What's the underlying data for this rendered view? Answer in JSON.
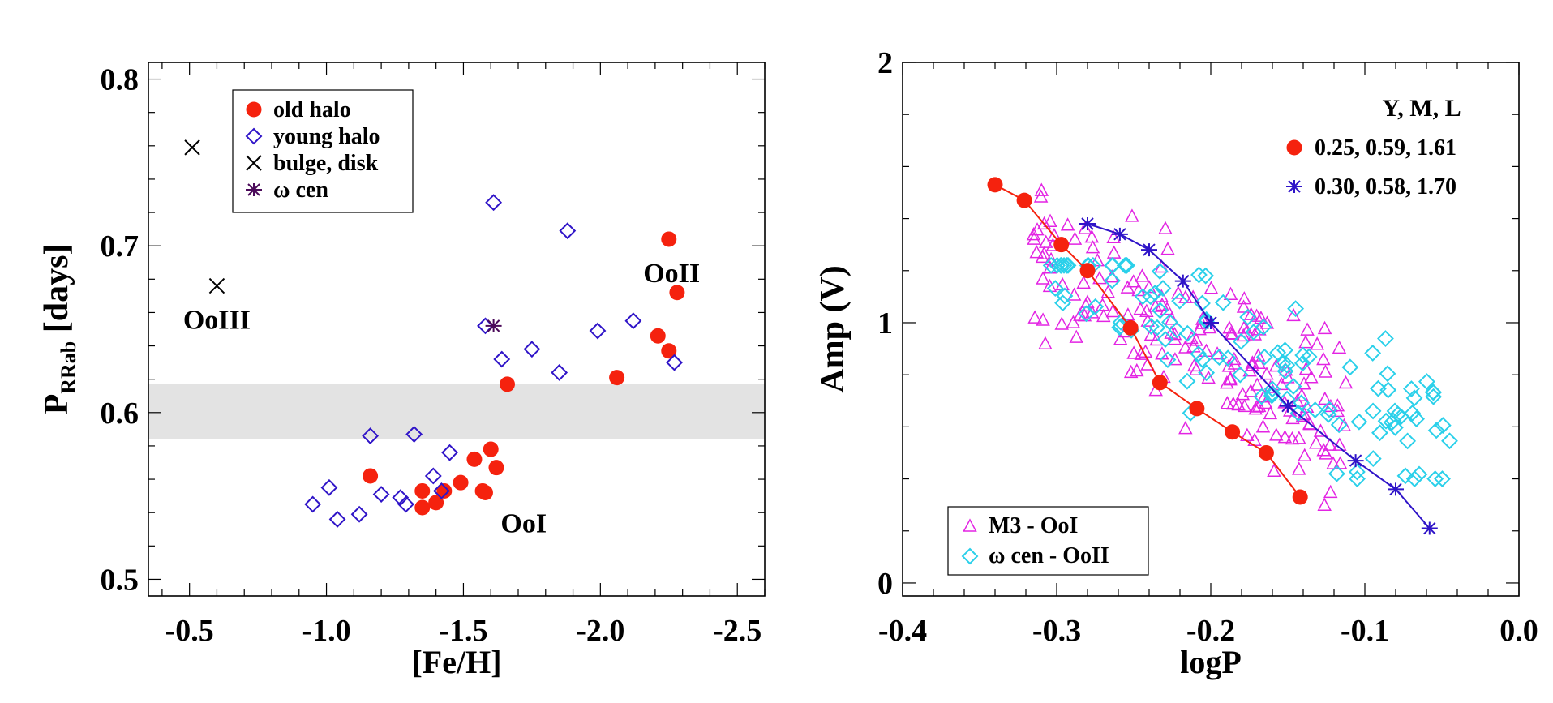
{
  "colors": {
    "red": "#f5220e",
    "blue": "#2f14c8",
    "purple": "#4b0a5a",
    "magenta": "#e324e3",
    "cyan": "#2ad0ea",
    "band": "#e3e3e3"
  },
  "chart_data": [
    {
      "type": "scatter",
      "title": "",
      "xlabel": "[Fe/H]",
      "ylabel": "P",
      "ylabel_sub": "RRab",
      "ylabel_units": " [days]",
      "xlim": [
        -0.35,
        -2.6
      ],
      "ylim": [
        0.49,
        0.81
      ],
      "xticks": [
        -0.5,
        -1.0,
        -1.5,
        -2.0,
        -2.5
      ],
      "xtick_labels": [
        "-0.5",
        "-1.0",
        "-1.5",
        "-2.0",
        "-2.5"
      ],
      "yticks": [
        0.5,
        0.6,
        0.7,
        0.8
      ],
      "ytick_labels": [
        "0.5",
        "0.6",
        "0.7",
        "0.8"
      ],
      "band": [
        0.584,
        0.617
      ],
      "legend_position": "top-left",
      "annotations": [
        {
          "text": "OoIII",
          "x": -0.6,
          "y": 0.656
        },
        {
          "text": "OoII",
          "x": -2.26,
          "y": 0.684
        },
        {
          "text": "OoI",
          "x": -1.72,
          "y": 0.534
        }
      ],
      "series": [
        {
          "name": "old halo",
          "marker": "circle",
          "color": "red",
          "x": [
            -1.16,
            -1.35,
            -1.35,
            -1.4,
            -1.43,
            -1.49,
            -1.54,
            -1.57,
            -1.58,
            -1.6,
            -1.62,
            -1.66,
            -2.06,
            -2.21,
            -2.25,
            -2.25,
            -2.28
          ],
          "y": [
            0.562,
            0.553,
            0.543,
            0.546,
            0.553,
            0.558,
            0.572,
            0.553,
            0.552,
            0.578,
            0.567,
            0.617,
            0.621,
            0.646,
            0.637,
            0.704,
            0.672
          ]
        },
        {
          "name": "young halo",
          "marker": "diamond",
          "color": "blue",
          "x": [
            -0.95,
            -1.01,
            -1.04,
            -1.12,
            -1.16,
            -1.2,
            -1.27,
            -1.29,
            -1.32,
            -1.39,
            -1.42,
            -1.45,
            -1.58,
            -1.61,
            -1.64,
            -1.75,
            -1.85,
            -1.88,
            -1.99,
            -2.12,
            -2.27
          ],
          "y": [
            0.545,
            0.555,
            0.536,
            0.539,
            0.586,
            0.551,
            0.549,
            0.545,
            0.587,
            0.562,
            0.553,
            0.576,
            0.652,
            0.726,
            0.632,
            0.638,
            0.624,
            0.709,
            0.649,
            0.655,
            0.63
          ]
        },
        {
          "name": "bulge, disk",
          "marker": "x",
          "color": "black",
          "x": [
            -0.51,
            -0.6
          ],
          "y": [
            0.759,
            0.676
          ]
        },
        {
          "name": "ω cen",
          "marker": "asterisk",
          "color": "purple",
          "x": [
            -1.61
          ],
          "y": [
            0.652
          ]
        }
      ]
    },
    {
      "type": "line+scatter",
      "title": "",
      "xlabel": "logP",
      "ylabel": "Amp (V)",
      "xlim": [
        -0.4,
        0.0
      ],
      "ylim": [
        -0.05,
        2.0
      ],
      "xticks": [
        -0.4,
        -0.3,
        -0.2,
        -0.1,
        0.0
      ],
      "xtick_labels": [
        "-0.4",
        "-0.3",
        "-0.2",
        "-0.1",
        "0.0"
      ],
      "yticks": [
        0,
        1,
        2
      ],
      "ytick_labels": [
        "0",
        "1",
        "2"
      ],
      "model_legend_title": "Y,   M,   L",
      "model_legend_position": "top-right",
      "data_legend_position": "bottom-left",
      "models": [
        {
          "name": "0.25, 0.59, 1.61",
          "marker": "circle",
          "color": "red",
          "x": [
            -0.34,
            -0.321,
            -0.297,
            -0.28,
            -0.252,
            -0.233,
            -0.209,
            -0.186,
            -0.164,
            -0.142
          ],
          "y": [
            1.53,
            1.47,
            1.3,
            1.2,
            0.98,
            0.77,
            0.67,
            0.58,
            0.5,
            0.33
          ]
        },
        {
          "name": "0.30, 0.58, 1.70",
          "marker": "asterisk",
          "color": "blue",
          "x": [
            -0.28,
            -0.259,
            -0.24,
            -0.218,
            -0.2,
            -0.15,
            -0.106,
            -0.08,
            -0.058
          ],
          "y": [
            1.38,
            1.34,
            1.28,
            1.16,
            1.0,
            0.68,
            0.47,
            0.36,
            0.21
          ]
        },
        {
          "name": "M3 - OoI",
          "marker": "triangle",
          "color": "magenta",
          "count": 190
        },
        {
          "name": "ω cen - OoII",
          "marker": "diamond",
          "color": "cyan",
          "count": 115
        }
      ]
    }
  ]
}
